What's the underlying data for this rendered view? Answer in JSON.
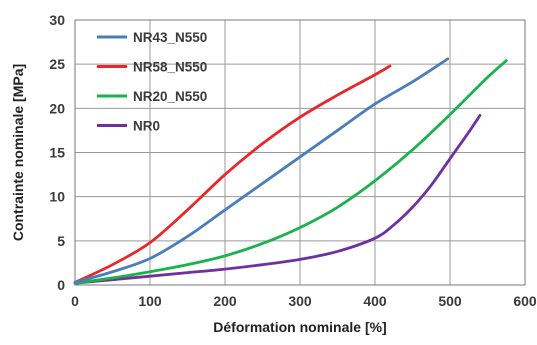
{
  "chart_data": {
    "type": "line",
    "title": "",
    "xlabel": "Déformation nominale [%]",
    "ylabel": "Contrainte nominale [MPa]",
    "xlim": [
      0,
      600
    ],
    "ylim": [
      0,
      30
    ],
    "xticks": [
      "0",
      "100",
      "200",
      "300",
      "400",
      "500",
      "600"
    ],
    "yticks": [
      "0",
      "5",
      "10",
      "15",
      "20",
      "25",
      "30"
    ],
    "grid": true,
    "legend_position": "top-left",
    "series": [
      {
        "name": "NR43_N550",
        "color": "#4a7ebb",
        "x": [
          0,
          50,
          100,
          150,
          200,
          250,
          300,
          350,
          400,
          450,
          497
        ],
        "y": [
          0.3,
          1.5,
          3.0,
          5.5,
          8.5,
          11.5,
          14.5,
          17.5,
          20.5,
          23.0,
          25.6
        ]
      },
      {
        "name": "NR58_N550",
        "color": "#e8262b",
        "x": [
          0,
          50,
          100,
          150,
          200,
          250,
          300,
          350,
          400,
          420
        ],
        "y": [
          0.3,
          2.3,
          4.8,
          8.5,
          12.5,
          16.0,
          19.0,
          21.5,
          23.8,
          24.8
        ]
      },
      {
        "name": "NR20_N550",
        "color": "#1ab34b",
        "x": [
          0,
          50,
          100,
          150,
          200,
          250,
          300,
          350,
          400,
          450,
          500,
          550,
          575
        ],
        "y": [
          0.2,
          0.8,
          1.5,
          2.3,
          3.3,
          4.7,
          6.5,
          8.8,
          11.8,
          15.3,
          19.3,
          23.5,
          25.4
        ]
      },
      {
        "name": "NR0",
        "color": "#7030a0",
        "x": [
          0,
          50,
          100,
          150,
          200,
          250,
          300,
          350,
          400,
          425,
          450,
          475,
          500,
          525,
          540
        ],
        "y": [
          0.2,
          0.6,
          1.0,
          1.4,
          1.8,
          2.3,
          2.9,
          3.8,
          5.3,
          6.8,
          8.8,
          11.3,
          14.3,
          17.3,
          19.2
        ]
      }
    ]
  }
}
